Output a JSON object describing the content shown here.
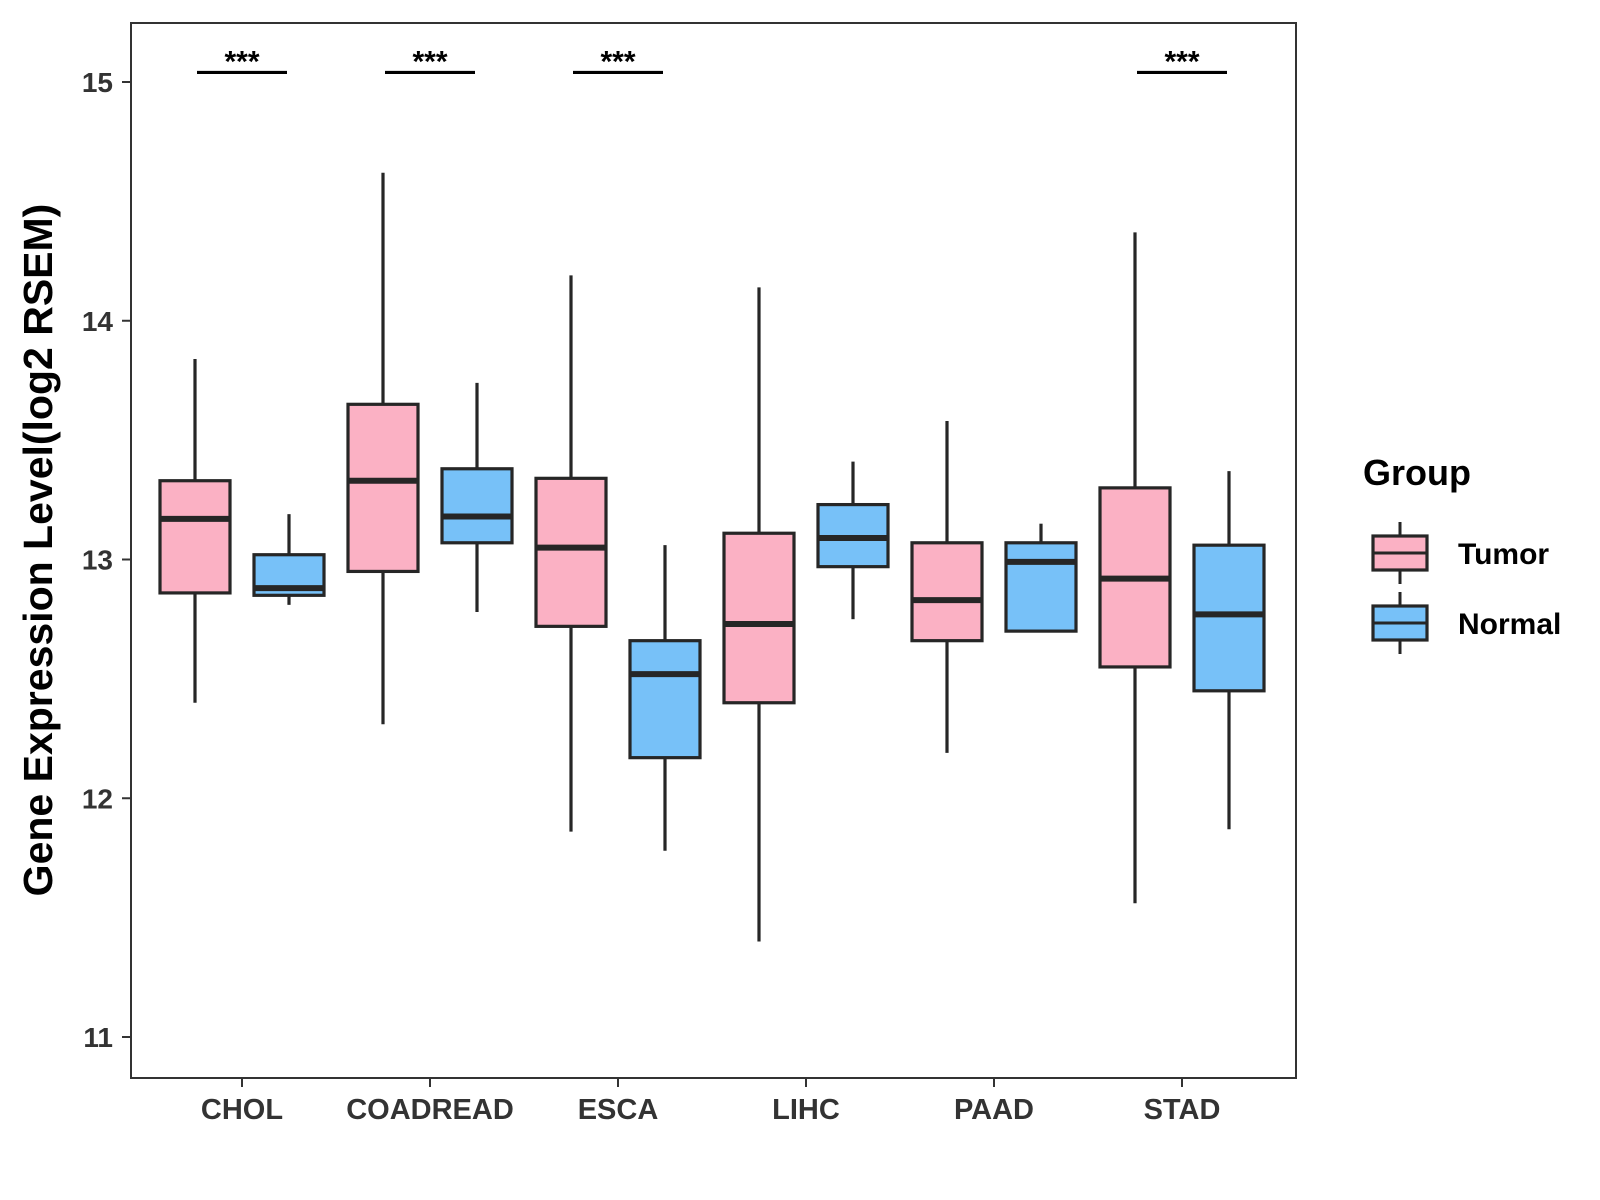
{
  "chart_data": {
    "type": "boxplot",
    "title": "",
    "xlabel": "",
    "ylabel": "Gene Expression Level(log2 RSEM)",
    "ylim": [
      10.85,
      15.25
    ],
    "yticks": [
      11,
      12,
      13,
      14,
      15
    ],
    "categories": [
      "CHOL",
      "COADREAD",
      "ESCA",
      "LIHC",
      "PAAD",
      "STAD"
    ],
    "legend": {
      "title": "Group",
      "position": "right"
    },
    "series": [
      {
        "name": "Tumor",
        "color": "#fbb1c4",
        "boxes": [
          {
            "min": 12.4,
            "q1": 12.86,
            "median": 13.17,
            "q3": 13.33,
            "max": 13.84
          },
          {
            "min": 12.31,
            "q1": 12.95,
            "median": 13.33,
            "q3": 13.65,
            "max": 14.62
          },
          {
            "min": 11.86,
            "q1": 12.72,
            "median": 13.05,
            "q3": 13.34,
            "max": 14.19
          },
          {
            "min": 11.4,
            "q1": 12.4,
            "median": 12.73,
            "q3": 13.11,
            "max": 14.14
          },
          {
            "min": 12.19,
            "q1": 12.66,
            "median": 12.83,
            "q3": 13.07,
            "max": 13.58
          },
          {
            "min": 11.56,
            "q1": 12.55,
            "median": 12.92,
            "q3": 13.3,
            "max": 14.37
          }
        ]
      },
      {
        "name": "Normal",
        "color": "#77c1f8",
        "boxes": [
          {
            "min": 12.81,
            "q1": 12.85,
            "median": 12.88,
            "q3": 13.02,
            "max": 13.19
          },
          {
            "min": 12.78,
            "q1": 13.07,
            "median": 13.18,
            "q3": 13.38,
            "max": 13.74
          },
          {
            "min": 11.78,
            "q1": 12.17,
            "median": 12.52,
            "q3": 12.66,
            "max": 13.06
          },
          {
            "min": 12.75,
            "q1": 12.97,
            "median": 13.09,
            "q3": 13.23,
            "max": 13.41
          },
          {
            "min": 12.7,
            "q1": 12.7,
            "median": 12.99,
            "q3": 13.07,
            "max": 13.15
          },
          {
            "min": 11.87,
            "q1": 12.45,
            "median": 12.77,
            "q3": 13.06,
            "max": 13.37
          }
        ]
      }
    ],
    "significance": [
      {
        "category": "CHOL",
        "label": "***"
      },
      {
        "category": "COADREAD",
        "label": "***"
      },
      {
        "category": "ESCA",
        "label": "***"
      },
      {
        "category": "STAD",
        "label": "***"
      }
    ],
    "significance_level": 15.04
  },
  "colors": {
    "outline": "#262626",
    "axis": "#333333",
    "background": "#ffffff"
  }
}
